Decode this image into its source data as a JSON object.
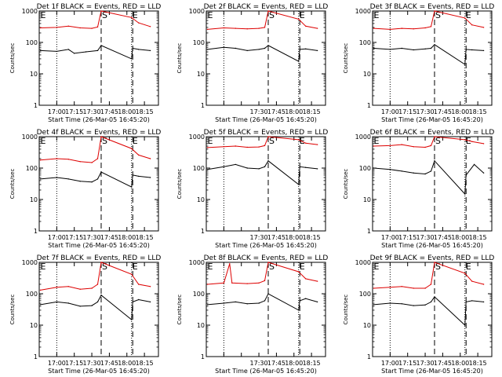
{
  "colors": {
    "events": "#000000",
    "lld": "#dd0000",
    "axes": "#000000",
    "background": "#ffffff"
  },
  "common": {
    "xlabel": "Start Time (26-Mar-05 16:45:20)",
    "ylabel": "Counts/sec",
    "y_tick_labels": [
      "1000",
      "100",
      "10",
      "1"
    ],
    "x_tick_labels_left": [
      "17:00",
      "17:15",
      "17:30",
      "17:45",
      "18:00",
      "18:15"
    ],
    "x_tick_labels_middle": [
      "17:30",
      "17:45",
      "18:00",
      "18:15"
    ],
    "marker_labels": [
      "E",
      "S",
      "E"
    ]
  },
  "chart_data": [
    {
      "type": "line",
      "title": "Det 1f BLACK = Events, RED = LLD",
      "xlabel": "Start Time (26-Mar-05 16:45:20)",
      "ylabel": "Counts/sec",
      "y_scale": "log",
      "ylim": [
        1,
        1000
      ],
      "x_ticks": [
        "17:00",
        "17:15",
        "17:30",
        "17:45",
        "18:00",
        "18:15"
      ],
      "events_marks": [
        "E",
        "S",
        "E"
      ],
      "series": [
        {
          "color": "red",
          "values": [
            [
              "16:46",
              290
            ],
            [
              "17:00",
              300
            ],
            [
              "17:10",
              330
            ],
            [
              "17:20",
              290
            ],
            [
              "17:30",
              280
            ],
            [
              "17:35",
              310
            ],
            [
              "17:38",
              1000
            ],
            [
              "18:04",
              620
            ],
            [
              "18:10",
              420
            ],
            [
              "18:20",
              320
            ]
          ]
        },
        {
          "color": "black",
          "values": [
            [
              "16:46",
              55
            ],
            [
              "17:00",
              52
            ],
            [
              "17:10",
              60
            ],
            [
              "17:15",
              45
            ],
            [
              "17:25",
              50
            ],
            [
              "17:35",
              55
            ],
            [
              "17:38",
              80
            ],
            [
              "18:04",
              30
            ],
            [
              "18:05",
              65
            ],
            [
              "18:10",
              60
            ],
            [
              "18:20",
              55
            ]
          ]
        }
      ]
    },
    {
      "type": "line",
      "title": "Det 2f BLACK = Events, RED = LLD",
      "xlabel": "Start Time (26-Mar-05 16:45:20)",
      "ylabel": "Counts/sec",
      "y_scale": "log",
      "ylim": [
        1,
        1000
      ],
      "x_ticks": [
        "17:30",
        "17:45",
        "18:00",
        "18:15"
      ],
      "events_marks": [
        "E",
        "S",
        "E"
      ],
      "series": [
        {
          "color": "red",
          "values": [
            [
              "16:46",
              260
            ],
            [
              "17:00",
              290
            ],
            [
              "17:10",
              280
            ],
            [
              "17:20",
              270
            ],
            [
              "17:30",
              280
            ],
            [
              "17:35",
              300
            ],
            [
              "17:38",
              1000
            ],
            [
              "18:04",
              550
            ],
            [
              "18:10",
              330
            ],
            [
              "18:20",
              280
            ]
          ]
        },
        {
          "color": "black",
          "values": [
            [
              "16:46",
              60
            ],
            [
              "17:00",
              70
            ],
            [
              "17:10",
              65
            ],
            [
              "17:20",
              55
            ],
            [
              "17:30",
              60
            ],
            [
              "17:35",
              65
            ],
            [
              "17:38",
              80
            ],
            [
              "18:04",
              25
            ],
            [
              "18:05",
              60
            ],
            [
              "18:10",
              62
            ],
            [
              "18:20",
              55
            ]
          ]
        }
      ]
    },
    {
      "type": "line",
      "title": "Det 3f BLACK = Events, RED = LLD",
      "xlabel": "Start Time (26-Mar-05 16:45:20)",
      "ylabel": "Counts/sec",
      "y_scale": "log",
      "ylim": [
        1,
        1000
      ],
      "x_ticks": [
        "17:00",
        "17:15",
        "17:30",
        "17:45",
        "18:00",
        "18:15"
      ],
      "events_marks": [
        "E",
        "S",
        "E"
      ],
      "series": [
        {
          "color": "red",
          "values": [
            [
              "16:46",
              280
            ],
            [
              "17:00",
              260
            ],
            [
              "17:10",
              280
            ],
            [
              "17:20",
              270
            ],
            [
              "17:30",
              290
            ],
            [
              "17:35",
              320
            ],
            [
              "17:38",
              1000
            ],
            [
              "18:04",
              600
            ],
            [
              "18:10",
              360
            ],
            [
              "18:20",
              300
            ]
          ]
        },
        {
          "color": "black",
          "values": [
            [
              "16:46",
              65
            ],
            [
              "17:00",
              60
            ],
            [
              "17:10",
              65
            ],
            [
              "17:20",
              58
            ],
            [
              "17:30",
              62
            ],
            [
              "17:35",
              65
            ],
            [
              "17:38",
              85
            ],
            [
              "18:04",
              20
            ],
            [
              "18:05",
              60
            ],
            [
              "18:10",
              58
            ],
            [
              "18:20",
              55
            ]
          ]
        }
      ]
    },
    {
      "type": "line",
      "title": "Det 4f BLACK = Events, RED = LLD",
      "xlabel": "Start Time (26-Mar-05 16:45:20)",
      "ylabel": "Counts/sec",
      "y_scale": "log",
      "ylim": [
        1,
        1000
      ],
      "x_ticks": [
        "17:00",
        "17:15",
        "17:30",
        "17:45",
        "18:00",
        "18:15"
      ],
      "events_marks": [
        "E",
        "S",
        "E"
      ],
      "series": [
        {
          "color": "red",
          "values": [
            [
              "16:46",
              180
            ],
            [
              "17:00",
              200
            ],
            [
              "17:10",
              190
            ],
            [
              "17:20",
              160
            ],
            [
              "17:30",
              150
            ],
            [
              "17:35",
              200
            ],
            [
              "17:38",
              1000
            ],
            [
              "18:04",
              420
            ],
            [
              "18:10",
              260
            ],
            [
              "18:20",
              200
            ]
          ]
        },
        {
          "color": "black",
          "values": [
            [
              "16:46",
              45
            ],
            [
              "17:00",
              50
            ],
            [
              "17:10",
              45
            ],
            [
              "17:20",
              38
            ],
            [
              "17:30",
              36
            ],
            [
              "17:35",
              45
            ],
            [
              "17:38",
              75
            ],
            [
              "18:04",
              25
            ],
            [
              "18:05",
              60
            ],
            [
              "18:10",
              55
            ],
            [
              "18:20",
              50
            ]
          ]
        }
      ]
    },
    {
      "type": "line",
      "title": "Det 5f BLACK = Events, RED = LLD",
      "xlabel": "Start Time (26-Mar-05 16:45:20)",
      "ylabel": "Counts/sec",
      "y_scale": "log",
      "ylim": [
        1,
        1000
      ],
      "x_ticks": [
        "17:30",
        "17:45",
        "18:00",
        "18:15"
      ],
      "events_marks": [
        "E",
        "S",
        "E"
      ],
      "series": [
        {
          "color": "red",
          "values": [
            [
              "16:46",
              450
            ],
            [
              "17:00",
              480
            ],
            [
              "17:10",
              500
            ],
            [
              "17:20",
              460
            ],
            [
              "17:30",
              470
            ],
            [
              "17:35",
              520
            ],
            [
              "17:38",
              1000
            ],
            [
              "18:04",
              800
            ],
            [
              "18:10",
              620
            ],
            [
              "18:20",
              560
            ]
          ]
        },
        {
          "color": "black",
          "values": [
            [
              "16:46",
              90
            ],
            [
              "17:00",
              110
            ],
            [
              "17:10",
              130
            ],
            [
              "17:20",
              100
            ],
            [
              "17:30",
              95
            ],
            [
              "17:35",
              110
            ],
            [
              "17:38",
              170
            ],
            [
              "18:04",
              30
            ],
            [
              "18:05",
              110
            ],
            [
              "18:10",
              105
            ],
            [
              "18:20",
              95
            ]
          ]
        }
      ]
    },
    {
      "type": "line",
      "title": "Det 6f BLACK = Events, RED = LLD",
      "xlabel": "Start Time (26-Mar-05 16:45:20)",
      "ylabel": "Counts/sec",
      "y_scale": "log",
      "ylim": [
        1,
        1000
      ],
      "x_ticks": [
        "17:00",
        "17:15",
        "17:30",
        "17:45",
        "18:00",
        "18:15"
      ],
      "events_marks": [
        "E",
        "S",
        "E"
      ],
      "series": [
        {
          "color": "red",
          "values": [
            [
              "16:46",
              500
            ],
            [
              "17:00",
              520
            ],
            [
              "17:10",
              560
            ],
            [
              "17:20",
              480
            ],
            [
              "17:30",
              460
            ],
            [
              "17:35",
              520
            ],
            [
              "17:38",
              1000
            ],
            [
              "18:04",
              800
            ],
            [
              "18:10",
              700
            ],
            [
              "18:20",
              600
            ]
          ]
        },
        {
          "color": "black",
          "values": [
            [
              "16:46",
              100
            ],
            [
              "17:00",
              90
            ],
            [
              "17:10",
              80
            ],
            [
              "17:20",
              70
            ],
            [
              "17:30",
              65
            ],
            [
              "17:35",
              80
            ],
            [
              "17:38",
              170
            ],
            [
              "18:04",
              15
            ],
            [
              "18:05",
              60
            ],
            [
              "18:12",
              130
            ],
            [
              "18:20",
              70
            ]
          ]
        }
      ]
    },
    {
      "type": "line",
      "title": "Det 7f BLACK = Events, RED = LLD",
      "xlabel": "Start Time (26-Mar-05 16:45:20)",
      "ylabel": "Counts/sec",
      "y_scale": "log",
      "ylim": [
        1,
        1000
      ],
      "x_ticks": [
        "17:00",
        "17:15",
        "17:30",
        "17:45",
        "18:00",
        "18:15"
      ],
      "events_marks": [
        "E",
        "S",
        "E"
      ],
      "series": [
        {
          "color": "red",
          "values": [
            [
              "16:46",
              130
            ],
            [
              "17:00",
              160
            ],
            [
              "17:10",
              170
            ],
            [
              "17:20",
              140
            ],
            [
              "17:30",
              150
            ],
            [
              "17:35",
              200
            ],
            [
              "17:38",
              1000
            ],
            [
              "18:04",
              420
            ],
            [
              "18:10",
              200
            ],
            [
              "18:20",
              170
            ]
          ]
        },
        {
          "color": "black",
          "values": [
            [
              "16:46",
              45
            ],
            [
              "17:00",
              55
            ],
            [
              "17:10",
              50
            ],
            [
              "17:20",
              40
            ],
            [
              "17:30",
              42
            ],
            [
              "17:35",
              55
            ],
            [
              "17:38",
              90
            ],
            [
              "18:04",
              15
            ],
            [
              "18:05",
              55
            ],
            [
              "18:10",
              65
            ],
            [
              "18:20",
              55
            ]
          ]
        }
      ]
    },
    {
      "type": "line",
      "title": "Det 8f BLACK = Events, RED = LLD",
      "xlabel": "Start Time (26-Mar-05 16:45:20)",
      "ylabel": "Counts/sec",
      "y_scale": "log",
      "ylim": [
        1,
        1000
      ],
      "x_ticks": [
        "17:30",
        "17:45",
        "18:00",
        "18:15"
      ],
      "events_marks": [
        "E",
        "S",
        "E"
      ],
      "series": [
        {
          "color": "red",
          "values": [
            [
              "16:46",
              200
            ],
            [
              "17:00",
              220
            ],
            [
              "17:05",
              900
            ],
            [
              "17:07",
              220
            ],
            [
              "17:20",
              210
            ],
            [
              "17:30",
              220
            ],
            [
              "17:35",
              260
            ],
            [
              "17:38",
              1000
            ],
            [
              "18:04",
              500
            ],
            [
              "18:10",
              300
            ],
            [
              "18:20",
              250
            ]
          ]
        },
        {
          "color": "black",
          "values": [
            [
              "16:46",
              45
            ],
            [
              "17:00",
              50
            ],
            [
              "17:10",
              55
            ],
            [
              "17:20",
              48
            ],
            [
              "17:30",
              50
            ],
            [
              "17:35",
              60
            ],
            [
              "17:38",
              100
            ],
            [
              "18:04",
              30
            ],
            [
              "18:05",
              60
            ],
            [
              "18:10",
              70
            ],
            [
              "18:20",
              55
            ]
          ]
        }
      ]
    },
    {
      "type": "line",
      "title": "Det 9f BLACK = Events, RED = LLD",
      "xlabel": "Start Time (26-Mar-05 16:45:20)",
      "ylabel": "Counts/sec",
      "y_scale": "log",
      "ylim": [
        1,
        1000
      ],
      "x_ticks": [
        "17:00",
        "17:15",
        "17:30",
        "17:45",
        "18:00",
        "18:15"
      ],
      "events_marks": [
        "E",
        "S",
        "E"
      ],
      "series": [
        {
          "color": "red",
          "values": [
            [
              "16:46",
              150
            ],
            [
              "17:00",
              160
            ],
            [
              "17:10",
              170
            ],
            [
              "17:20",
              150
            ],
            [
              "17:30",
              150
            ],
            [
              "17:35",
              200
            ],
            [
              "17:38",
              1000
            ],
            [
              "18:04",
              450
            ],
            [
              "18:10",
              250
            ],
            [
              "18:20",
              200
            ]
          ]
        },
        {
          "color": "black",
          "values": [
            [
              "16:46",
              45
            ],
            [
              "17:00",
              50
            ],
            [
              "17:10",
              48
            ],
            [
              "17:20",
              42
            ],
            [
              "17:30",
              44
            ],
            [
              "17:35",
              55
            ],
            [
              "17:38",
              80
            ],
            [
              "18:04",
              10
            ],
            [
              "18:05",
              55
            ],
            [
              "18:10",
              60
            ],
            [
              "18:20",
              55
            ]
          ]
        }
      ]
    }
  ]
}
